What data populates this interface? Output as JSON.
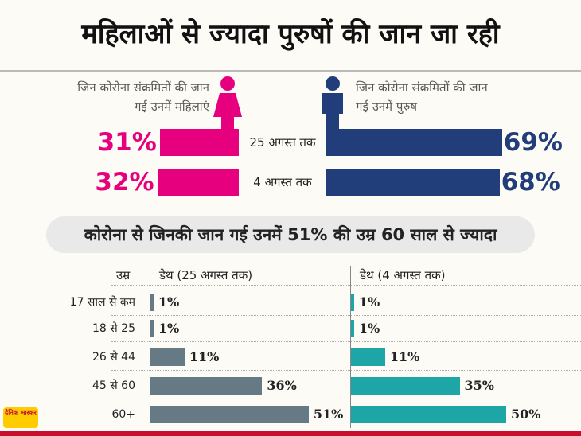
{
  "chart_data": [
    {
      "type": "butterfly",
      "title": "महिलाओं से ज्यादा पुरुषों की जान जा रही",
      "categories": [
        "25 अगस्त तक",
        "4 अगस्त तक"
      ],
      "series": [
        {
          "name": "जिन कोरोना संक्रमितों की जान गई उनमें महिलाएं",
          "color": "#e6007e",
          "values": [
            31,
            32
          ],
          "value_labels": [
            "31%",
            "32%"
          ]
        },
        {
          "name": "जिन कोरोना संक्रमितों की जान गई उनमें पुरुष",
          "color": "#213d7a",
          "values": [
            69,
            68
          ],
          "value_labels": [
            "69%",
            "68%"
          ]
        }
      ]
    },
    {
      "type": "bar",
      "title": "कोरोना से जिनकी जान गई उनमें 51% की उम्र 60 साल से ज्यादा",
      "category_label": "उम्र",
      "categories": [
        "17 साल से कम",
        "18 से 25",
        "26 से 44",
        "45 से 60",
        "60+"
      ],
      "series": [
        {
          "name": "डेथ (25 अगस्त तक)",
          "color": "#667a85",
          "values": [
            1,
            1,
            11,
            36,
            51
          ],
          "value_labels": [
            "1%",
            "1%",
            "11%",
            "36%",
            "51%"
          ]
        },
        {
          "name": "डेथ (4 अगस्त तक)",
          "color": "#1ea5a5",
          "values": [
            1,
            1,
            11,
            35,
            50
          ],
          "value_labels": [
            "1%",
            "1%",
            "11%",
            "35%",
            "50%"
          ]
        }
      ]
    }
  ],
  "logo": "दैनिक भास्कर"
}
